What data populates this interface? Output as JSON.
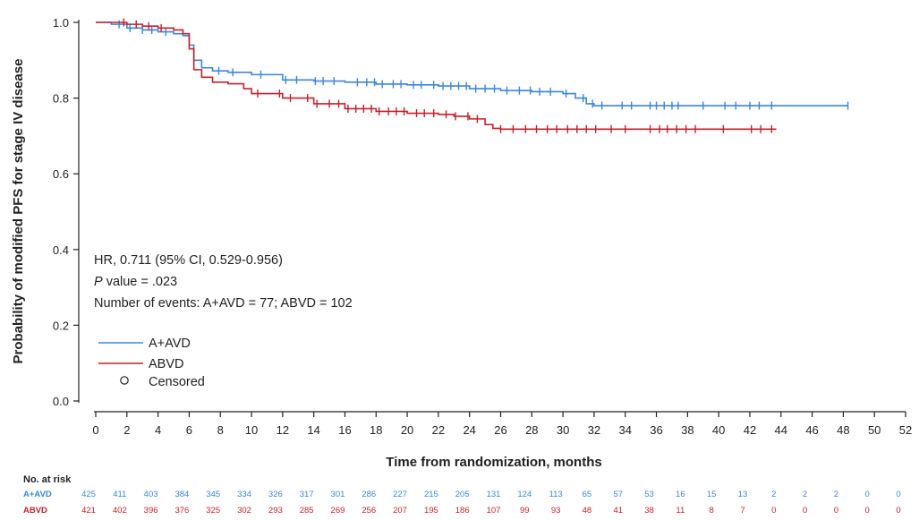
{
  "chart_data": {
    "type": "line",
    "subtype": "kaplan-meier",
    "xlabel": "Time from randomization, months",
    "ylabel": "Probability of modified PFS for stage IV disease",
    "xlim": [
      0,
      52
    ],
    "ylim": [
      0.0,
      1.0
    ],
    "xticks": [
      "0",
      "2",
      "4",
      "6",
      "8",
      "10",
      "12",
      "14",
      "16",
      "18",
      "20",
      "22",
      "24",
      "26",
      "28",
      "30",
      "32",
      "34",
      "36",
      "38",
      "40",
      "42",
      "44",
      "46",
      "48",
      "50",
      "52"
    ],
    "yticks": [
      "0.0",
      "0.2",
      "0.4",
      "0.6",
      "0.8",
      "1.0"
    ],
    "grid": false,
    "annotations": {
      "hr": "HR, 0.711 (95% CI, 0.529-0.956)",
      "p_italic": "P",
      "p_rest": " value = .023",
      "events": "Number of events: A+AVD = 77; ABVD = 102"
    },
    "legend": {
      "placement": "bottom-left",
      "censored_label": "Censored"
    },
    "series": [
      {
        "name": "A+AVD",
        "color": "#3a86e0",
        "x": [
          0,
          1,
          2,
          3,
          4,
          5,
          5.6,
          6,
          6.3,
          6.8,
          7.5,
          8.5,
          10,
          12,
          14,
          16,
          18,
          20,
          22,
          24,
          26,
          28,
          30,
          30.8,
          31.5,
          32,
          48.3
        ],
        "y": [
          1.0,
          0.995,
          0.985,
          0.98,
          0.975,
          0.97,
          0.965,
          0.94,
          0.9,
          0.88,
          0.872,
          0.868,
          0.862,
          0.848,
          0.845,
          0.842,
          0.837,
          0.835,
          0.832,
          0.825,
          0.82,
          0.817,
          0.812,
          0.8,
          0.785,
          0.78,
          0.78
        ],
        "censored": [
          1.5,
          2.2,
          3.0,
          3.6,
          4.5,
          7.9,
          8.8,
          10.6,
          12.2,
          12.9,
          14.1,
          14.6,
          15.3,
          16.8,
          17.4,
          17.9,
          18.4,
          19.1,
          19.6,
          20.4,
          20.9,
          21.7,
          22.3,
          22.8,
          23.3,
          23.8,
          24.4,
          25.0,
          25.6,
          26.4,
          27.2,
          27.9,
          28.5,
          29.2,
          30.2,
          31.3,
          31.9,
          32.5,
          33.8,
          34.4,
          35.6,
          36.0,
          36.5,
          37.0,
          37.4,
          39.0,
          40.4,
          41.1,
          42.0,
          42.6,
          43.4,
          48.3
        ]
      },
      {
        "name": "ABVD",
        "color": "#c8202a",
        "x": [
          0,
          1,
          2,
          3,
          4,
          5,
          5.6,
          6,
          6.3,
          6.8,
          7.5,
          8.5,
          9.5,
          10,
          12,
          14,
          16,
          18,
          20,
          22,
          23,
          24,
          25,
          25.5,
          26,
          43.7
        ],
        "y": [
          1.0,
          1.0,
          0.995,
          0.99,
          0.985,
          0.98,
          0.97,
          0.93,
          0.875,
          0.855,
          0.842,
          0.838,
          0.825,
          0.812,
          0.8,
          0.785,
          0.772,
          0.765,
          0.76,
          0.757,
          0.752,
          0.745,
          0.73,
          0.72,
          0.718,
          0.718
        ],
        "censored": [
          1.8,
          2.6,
          3.4,
          4.2,
          10.4,
          11.8,
          12.5,
          13.6,
          14.2,
          15.0,
          15.6,
          16.2,
          16.7,
          17.2,
          17.7,
          18.2,
          18.8,
          19.3,
          19.8,
          20.6,
          21.1,
          21.7,
          22.5,
          23.1,
          23.9,
          24.5,
          26.0,
          26.8,
          27.6,
          28.3,
          29.0,
          29.6,
          30.3,
          30.9,
          31.5,
          32.1,
          33.1,
          34.0,
          35.6,
          36.2,
          36.7,
          37.3,
          37.9,
          38.5,
          40.3,
          42.1,
          42.7,
          43.4
        ]
      }
    ],
    "risk_table": {
      "title": "No. at risk",
      "rows": [
        {
          "label": "A+AVD",
          "color": "#3a86e0",
          "values": [
            "425",
            "411",
            "403",
            "384",
            "345",
            "334",
            "326",
            "317",
            "301",
            "286",
            "227",
            "215",
            "205",
            "131",
            "124",
            "113",
            "65",
            "57",
            "53",
            "16",
            "15",
            "13",
            "2",
            "2",
            "2",
            "0",
            "0"
          ]
        },
        {
          "label": "ABVD",
          "color": "#c8202a",
          "values": [
            "421",
            "402",
            "396",
            "376",
            "325",
            "302",
            "293",
            "285",
            "269",
            "256",
            "207",
            "195",
            "186",
            "107",
            "99",
            "93",
            "48",
            "41",
            "38",
            "11",
            "8",
            "7",
            "0",
            "0",
            "0",
            "0",
            "0"
          ]
        }
      ]
    }
  }
}
